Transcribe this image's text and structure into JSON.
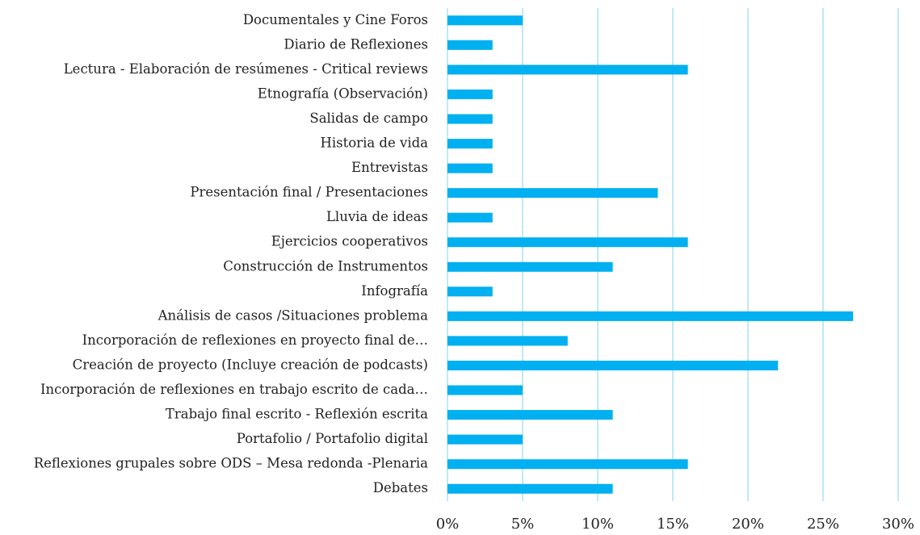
{
  "chart_data": {
    "type": "barh",
    "categories": [
      "Documentales y Cine Foros",
      "Diario de Reflexiones",
      "Lectura - Elaboración de resúmenes - Critical reviews",
      "Etnografía (Observación)",
      "Salidas de campo",
      "Historia de vida",
      "Entrevistas ",
      "Presentación final / Presentaciones",
      "Lluvia de ideas",
      "Ejercicios cooperativos ",
      "Construcción de Instrumentos",
      "Infografía",
      "Análisis de casos /Situaciones problema",
      "Incorporación de reflexiones en proyecto final de…",
      "Creación de proyecto (Incluye creación de podcasts) ",
      "Incorporación de reflexiones en trabajo escrito de cada…",
      "Trabajo final escrito - Reflexión escrita",
      "Portafolio / Portafolio digital",
      "Reflexiones grupales sobre ODS – Mesa redonda -Plenaria",
      "Debates"
    ],
    "values": [
      5,
      3,
      16,
      3,
      3,
      3,
      3,
      14,
      3,
      16,
      11,
      3,
      27,
      8,
      22,
      5,
      11,
      5,
      16,
      11
    ],
    "color": "#00b0f0",
    "xlim": [
      0,
      30
    ],
    "xticks": [
      {
        "value": 0,
        "label": "0%"
      },
      {
        "value": 5,
        "label": "5%"
      },
      {
        "value": 10,
        "label": "10%"
      },
      {
        "value": 15,
        "label": "15%"
      },
      {
        "value": 20,
        "label": "20%"
      },
      {
        "value": 25,
        "label": "25%"
      },
      {
        "value": 30,
        "label": "30%"
      }
    ],
    "grid": true
  }
}
